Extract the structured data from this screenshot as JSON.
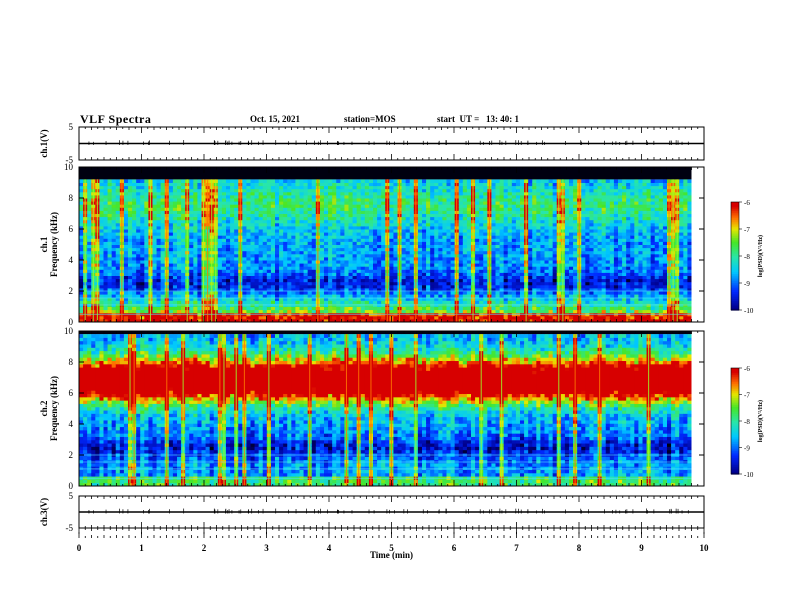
{
  "header": {
    "title": "VLF Spectra",
    "date": "Oct. 15, 2021",
    "station": "station=MOS",
    "start": "start  UT =   13: 40: 1"
  },
  "chart_data": [
    {
      "type": "line",
      "panel": "ch1-waveform",
      "ylabel": "ch.1(V)",
      "ylim": [
        -5,
        5
      ],
      "yticks": [
        "5",
        "-5"
      ],
      "x": [
        0,
        10
      ],
      "values": [
        0,
        0
      ]
    },
    {
      "type": "heatmap",
      "panel": "ch1-spectrogram",
      "ylabel": "ch.1 Frequency (kHz)",
      "ylim": [
        0,
        10
      ],
      "yticks": [
        "0",
        "2",
        "4",
        "6",
        "8",
        "10"
      ],
      "xlim": [
        0,
        9.8
      ],
      "band_max_khz": 9.2,
      "colorbar": {
        "label": "log(PSD)(V²/Hz)",
        "range": [
          -10,
          -6
        ],
        "ticks": [
          "-6",
          "-7",
          "-8",
          "-9",
          "-10"
        ]
      },
      "hotspot_center_khz": 0,
      "hotspot_level": 0.45,
      "spike_probability": 0.18,
      "seed": 17
    },
    {
      "type": "heatmap",
      "panel": "ch2-spectrogram",
      "ylabel": "ch.2 Frequency (kHz)",
      "ylim": [
        0,
        10
      ],
      "yticks": [
        "0",
        "2",
        "4",
        "6",
        "8",
        "10"
      ],
      "xlim": [
        0,
        9.8
      ],
      "band_max_khz": 9.8,
      "colorbar": {
        "label": "log(PSD)(V²/Hz)",
        "range": [
          -10,
          -6
        ],
        "ticks": [
          "-6",
          "-7",
          "-8",
          "-9",
          "-10"
        ]
      },
      "hotspot_center_khz": 6.7,
      "hotspot_level": 0.95,
      "spike_probability": 0.12,
      "seed": 41
    },
    {
      "type": "line",
      "panel": "ch3-waveform",
      "ylabel": "ch.3(V)",
      "ylim": [
        -5,
        5
      ],
      "yticks": [
        "5",
        "-5"
      ],
      "x": [
        0,
        10
      ],
      "values": [
        0,
        0
      ]
    }
  ],
  "xaxis": {
    "label": "Time  (min)",
    "ticks": [
      "0",
      "1",
      "2",
      "3",
      "4",
      "5",
      "6",
      "7",
      "8",
      "9",
      "10"
    ],
    "range": [
      0,
      10
    ]
  }
}
